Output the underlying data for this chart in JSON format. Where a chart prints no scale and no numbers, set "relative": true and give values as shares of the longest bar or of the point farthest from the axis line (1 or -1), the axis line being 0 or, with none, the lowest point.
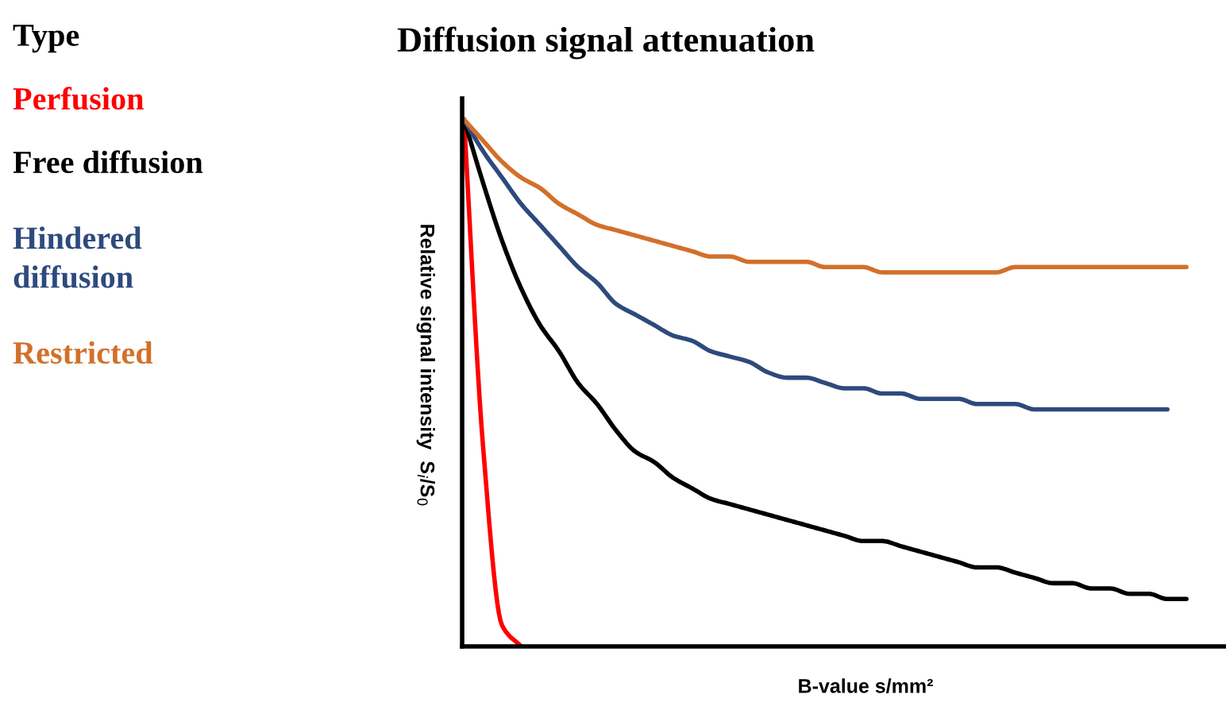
{
  "chart_data": {
    "type": "line",
    "title": "Diffusion signal attenuation",
    "xlabel": "B-value s/mm²",
    "ylabel": "Relative signal intensity  S$_{i}$/S$_{0}$",
    "legend_title": "Type",
    "legend": "left",
    "relative": true,
    "marker": "none",
    "line_style": "solid",
    "grid": false,
    "categories": [
      null,
      null,
      null,
      null,
      null,
      null,
      null,
      null,
      null,
      null,
      null,
      null,
      null,
      null,
      null,
      null,
      null,
      null,
      null,
      null,
      null,
      null,
      null,
      null,
      null,
      null,
      null,
      null,
      null,
      null,
      null,
      null,
      null,
      null,
      null,
      null,
      null,
      null,
      null,
      null,
      null
    ],
    "series": [
      {
        "name": "Perfusion",
        "color": "#ff0000",
        "values": [
          1.0,
          0.38,
          0.04,
          0.0,
          null,
          null,
          null,
          null,
          null,
          null,
          null,
          null,
          null,
          null,
          null,
          null,
          null,
          null,
          null,
          null,
          null,
          null,
          null,
          null,
          null,
          null,
          null,
          null,
          null,
          null,
          null,
          null,
          null,
          null,
          null,
          null,
          null,
          null,
          null,
          null,
          null
        ]
      },
      {
        "name": "Free diffusion",
        "color": "#000000",
        "values": [
          1.0,
          0.88,
          0.77,
          0.68,
          0.61,
          0.56,
          0.5,
          0.46,
          0.41,
          0.37,
          0.35,
          0.32,
          0.3,
          0.28,
          0.27,
          0.26,
          0.25,
          0.24,
          0.23,
          0.22,
          0.21,
          0.2,
          0.2,
          0.19,
          0.18,
          0.17,
          0.16,
          0.15,
          0.15,
          0.14,
          0.13,
          0.12,
          0.12,
          0.11,
          0.11,
          0.1,
          0.1,
          0.09,
          0.09,
          null,
          null
        ]
      },
      {
        "name": "Hindered diffusion",
        "color": "#2e4a7d",
        "values": [
          1.0,
          0.94,
          0.89,
          0.84,
          0.8,
          0.76,
          0.72,
          0.69,
          0.65,
          0.63,
          0.61,
          0.59,
          0.58,
          0.56,
          0.55,
          0.54,
          0.52,
          0.51,
          0.51,
          0.5,
          0.49,
          0.49,
          0.48,
          0.48,
          0.47,
          0.47,
          0.47,
          0.46,
          0.46,
          0.46,
          0.45,
          0.45,
          0.45,
          0.45,
          0.45,
          0.45,
          0.45,
          0.45,
          null,
          null,
          null
        ]
      },
      {
        "name": "Restricted",
        "color": "#d2702a",
        "values": [
          1.0,
          0.96,
          0.92,
          0.89,
          0.87,
          0.84,
          0.82,
          0.8,
          0.79,
          0.78,
          0.77,
          0.76,
          0.75,
          0.74,
          0.74,
          0.73,
          0.73,
          0.73,
          0.73,
          0.72,
          0.72,
          0.72,
          0.71,
          0.71,
          0.71,
          0.71,
          0.71,
          0.71,
          0.71,
          0.72,
          0.72,
          0.72,
          0.72,
          0.72,
          0.72,
          0.72,
          0.72,
          0.72,
          0.72,
          null,
          null
        ]
      }
    ]
  }
}
